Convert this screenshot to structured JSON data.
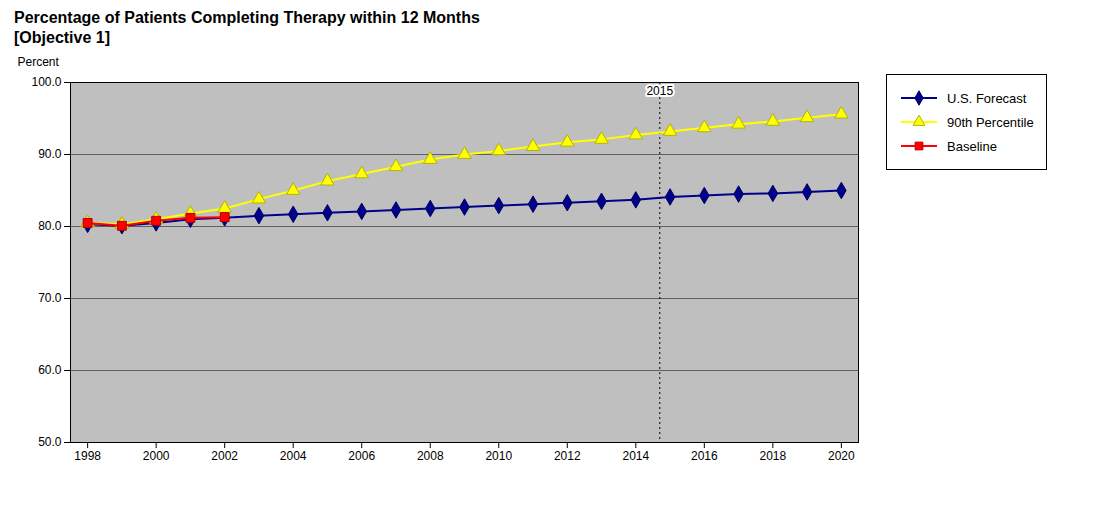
{
  "chart_data": {
    "type": "line",
    "title": "Percentage of Patients Completing Therapy within 12 Months",
    "subtitle": "[Objective 1]",
    "y_label": "Percent",
    "x": [
      1998,
      1999,
      2000,
      2001,
      2002,
      2003,
      2004,
      2005,
      2006,
      2007,
      2008,
      2009,
      2010,
      2011,
      2012,
      2013,
      2014,
      2015,
      2016,
      2017,
      2018,
      2019,
      2020
    ],
    "series": [
      {
        "name": "U.S. Forecast",
        "color": "#00008B",
        "marker": "diamond",
        "values": [
          80.3,
          80.1,
          80.5,
          81.0,
          81.2,
          81.5,
          81.7,
          81.9,
          82.1,
          82.3,
          82.5,
          82.7,
          82.9,
          83.1,
          83.3,
          83.5,
          83.7,
          84.1,
          84.3,
          84.5,
          84.6,
          84.8,
          85.0
        ]
      },
      {
        "name": "90th Percentile",
        "color": "#FFFF00",
        "marker": "triangle",
        "values": [
          80.5,
          80.3,
          81.0,
          81.8,
          82.5,
          83.8,
          85.0,
          86.3,
          87.3,
          88.3,
          89.3,
          90.0,
          90.5,
          91.1,
          91.7,
          92.1,
          92.7,
          93.2,
          93.7,
          94.2,
          94.6,
          95.1,
          95.6
        ]
      },
      {
        "name": "Baseline",
        "color": "#FF0000",
        "marker": "square",
        "values": [
          80.5,
          80.1,
          80.8,
          81.2,
          81.3,
          null,
          null,
          null,
          null,
          null,
          null,
          null,
          null,
          null,
          null,
          null,
          null,
          null,
          null,
          null,
          null,
          null,
          null
        ]
      }
    ],
    "annotations": [
      {
        "x": 2014.7,
        "text": "2015"
      }
    ],
    "xlim": [
      1997.5,
      2020.5
    ],
    "xticks": [
      1998,
      2000,
      2002,
      2004,
      2006,
      2008,
      2010,
      2012,
      2014,
      2016,
      2018,
      2020
    ],
    "ylim": [
      50.0,
      100.0
    ],
    "yticks": [
      {
        "value": 50,
        "label": "50.0"
      },
      {
        "value": 60,
        "label": "60.0"
      },
      {
        "value": 70,
        "label": "70.0"
      },
      {
        "value": 80,
        "label": "80.0"
      },
      {
        "value": 90,
        "label": "90.0"
      },
      {
        "value": 100,
        "label": "100.0"
      }
    ],
    "grid": true,
    "legend": "upper right"
  }
}
